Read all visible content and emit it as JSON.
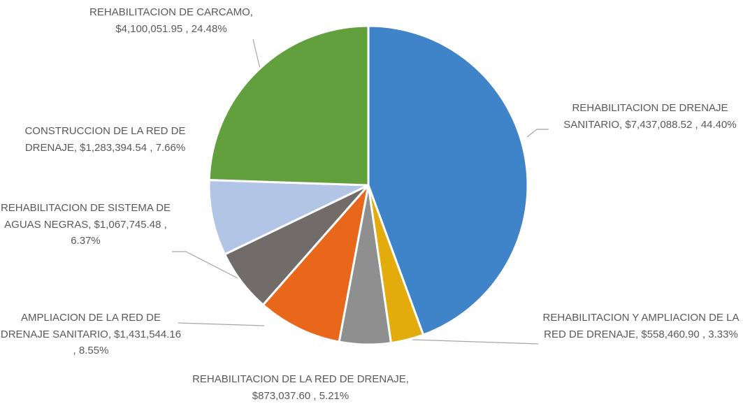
{
  "chart_data": {
    "type": "pie",
    "categories": [
      "REHABILITACION DE DRENAJE SANITARIO",
      "REHABILITACION Y AMPLIACION DE LA RED DE DRENAJE",
      "REHABILITACION DE LA RED DE DRENAJE",
      "AMPLIACION DE LA RED DE DRENAJE SANITARIO",
      "REHABILITACION DE SISTEMA DE AGUAS NEGRAS",
      "CONSTRUCCION DE LA RED DE DRENAJE",
      "REHABILITACION DE CARCAMO"
    ],
    "values": [
      44.4,
      3.33,
      5.21,
      8.55,
      6.37,
      7.66,
      24.48
    ],
    "value_labels": [
      "44.40%",
      "3.33%",
      "5.21%",
      "8.55%",
      "6.37%",
      "7.66%",
      "24.48%"
    ],
    "amount_labels": [
      "$7,437,088.52",
      "$558,460.90",
      "$873,037.60",
      "$1,431,544.16",
      "$1,067,745.48",
      "$1,283,394.54",
      "$4,100,051.95"
    ],
    "colors": [
      "#3f84c8",
      "#e3ac0c",
      "#8f8f8f",
      "#e8671b",
      "#716c6a",
      "#b2c5e6",
      "#62a03e"
    ]
  }
}
